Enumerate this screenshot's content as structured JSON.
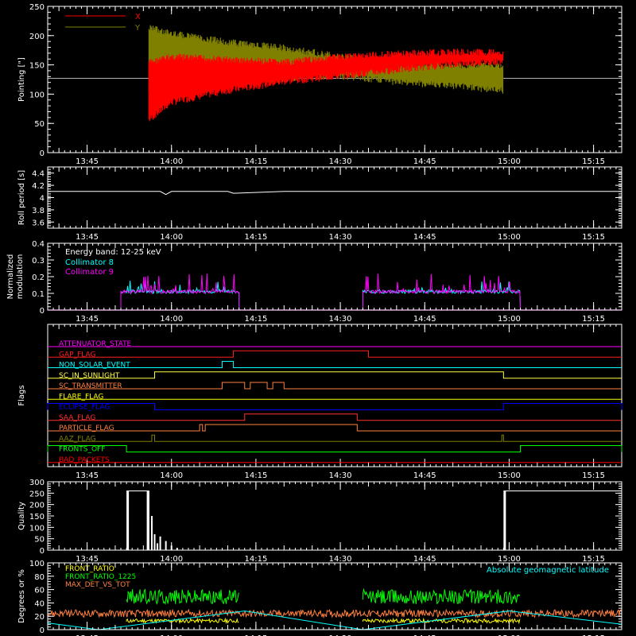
{
  "chart_data": [
    {
      "id": "pointing",
      "type": "line",
      "ylabel": "Pointing [\"]",
      "ylim": [
        0,
        250
      ],
      "yticks": [
        0,
        50,
        100,
        150,
        200,
        250
      ],
      "legend_placement": "top-left",
      "series": [
        {
          "name": "X",
          "color": "#ff0000",
          "x": [
            "13:56",
            "14:00",
            "14:10",
            "14:20",
            "14:30",
            "14:40",
            "14:50",
            "14:59"
          ],
          "upper": [
            160,
            170,
            165,
            160,
            170,
            175,
            178,
            178
          ],
          "lower": [
            50,
            80,
            100,
            115,
            125,
            135,
            145,
            150
          ]
        },
        {
          "name": "Y",
          "color": "#808000",
          "x": [
            "13:56",
            "14:00",
            "14:10",
            "14:20",
            "14:30",
            "14:40",
            "14:50",
            "14:59"
          ],
          "upper": [
            220,
            210,
            195,
            185,
            170,
            160,
            155,
            155
          ],
          "lower": [
            95,
            105,
            115,
            120,
            125,
            115,
            108,
            100
          ]
        }
      ],
      "reference_line": 127
    },
    {
      "id": "roll",
      "type": "line",
      "ylabel": "Roll period [s]",
      "ylim": [
        3.5,
        4.5
      ],
      "yticks": [
        3.6,
        3.8,
        4.0,
        4.2,
        4.4
      ],
      "series": [
        {
          "name": "",
          "color": "#ffffff",
          "x": [
            "13:38",
            "13:58",
            "13:59",
            "14:00",
            "14:10",
            "14:11",
            "14:20",
            "15:20"
          ],
          "values": [
            4.1,
            4.1,
            4.05,
            4.1,
            4.1,
            4.07,
            4.1,
            4.1
          ]
        }
      ]
    },
    {
      "id": "modulation",
      "type": "line",
      "ylabel": "Normalized modulation",
      "ylim": [
        0,
        0.4
      ],
      "yticks": [
        0,
        0.1,
        0.2,
        0.3,
        0.4
      ],
      "annotation": "Energy band: 12-25 keV",
      "series": [
        {
          "name": "Collimator 8",
          "color": "#00ffff",
          "active": [
            [
              "13:51",
              "14:12"
            ],
            [
              "14:34",
              "15:02"
            ]
          ],
          "level": 0.1,
          "peak": 0.18
        },
        {
          "name": "Collimator 9",
          "color": "#ff00ff",
          "active": [
            [
              "13:51",
              "14:12"
            ],
            [
              "14:34",
              "15:02"
            ]
          ],
          "level": 0.1,
          "peak": 0.22
        }
      ]
    },
    {
      "id": "flags",
      "type": "line",
      "ylabel": "Flags",
      "series": [
        {
          "name": "ATTENUATOR_STATE",
          "color": "#ff00ff",
          "segments": []
        },
        {
          "name": "GAP_FLAG",
          "color": "#ff2020",
          "segments": [
            [
              "14:11",
              "14:35"
            ]
          ]
        },
        {
          "name": "NON_SOLAR_EVENT",
          "color": "#00ffff",
          "segments": [
            [
              "14:09",
              "14:11"
            ]
          ]
        },
        {
          "name": "SC_IN_SUNLIGHT",
          "color": "#ffff40",
          "segments": [
            [
              "13:57",
              "14:59"
            ]
          ]
        },
        {
          "name": "SC_TRANSMITTER",
          "color": "#ff8040",
          "segments": [
            [
              "14:09",
              "14:13"
            ],
            [
              "14:14",
              "14:17"
            ],
            [
              "14:18",
              "14:20"
            ]
          ]
        },
        {
          "name": "FLARE_FLAG",
          "color": "#ffff00",
          "segments": []
        },
        {
          "name": "ECLIPSE_FLAG",
          "color": "#0000ff",
          "segments": [
            [
              "13:38",
              "13:57"
            ],
            [
              "14:59",
              "15:20"
            ]
          ]
        },
        {
          "name": "SAA_FLAG",
          "color": "#ff3030",
          "segments": [
            [
              "14:13",
              "14:33"
            ]
          ]
        },
        {
          "name": "PARTICLE_FLAG",
          "color": "#ff8040",
          "segments": [
            [
              "14:05",
              "14:05.5"
            ],
            [
              "14:06",
              "14:33"
            ]
          ]
        },
        {
          "name": "AAZ_FLAG",
          "color": "#808000",
          "segments": [
            [
              "13:56.5",
              "13:57"
            ],
            [
              "14:58.7",
              "14:59"
            ]
          ]
        },
        {
          "name": "FRONTS_OFF",
          "color": "#00ff00",
          "segments": [
            [
              "13:38",
              "13:52"
            ],
            [
              "15:02",
              "15:20"
            ]
          ]
        },
        {
          "name": "BAD_PACKETS",
          "color": "#ff0000",
          "segments": []
        }
      ]
    },
    {
      "id": "quality",
      "type": "bar",
      "ylabel": "Quality",
      "ylim": [
        0,
        300
      ],
      "yticks": [
        0,
        50,
        100,
        150,
        200,
        250,
        300
      ],
      "series": [
        {
          "name": "",
          "color": "#ffffff",
          "blocks": [
            [
              "13:52",
              "13:56",
              260
            ],
            [
              "14:59",
              "15:20",
              260
            ]
          ],
          "spikes": [
            [
              "13:56.5",
              150
            ],
            [
              "13:57",
              70
            ],
            [
              "13:57.5",
              30
            ],
            [
              "13:58",
              60
            ],
            [
              "13:59",
              40
            ],
            [
              "14:00",
              20
            ],
            [
              "14:01",
              10
            ]
          ]
        }
      ]
    },
    {
      "id": "geomag",
      "type": "line",
      "ylabel": "Degrees or %",
      "ylim": [
        0,
        100
      ],
      "yticks": [
        0,
        20,
        40,
        60,
        80,
        100
      ],
      "legend_placement": "top-left",
      "series": [
        {
          "name": "FRONT_RATIO",
          "color": "#ffff00",
          "active": [
            [
              "13:52",
              "14:12"
            ],
            [
              "14:34",
              "15:02"
            ]
          ],
          "level": 12
        },
        {
          "name": "FRONT_RATIO_1225",
          "color": "#00ff00",
          "active": [
            [
              "13:52",
              "14:12"
            ],
            [
              "14:34",
              "15:02"
            ]
          ],
          "level": 45
        },
        {
          "name": "MAX_DET_VS_TOT",
          "color": "#ff8040",
          "active": [
            [
              "13:38",
              "15:20"
            ]
          ],
          "level": 22
        },
        {
          "name": "Absolute geomagnetic latitude",
          "color": "#00ffff",
          "x": [
            "13:38",
            "13:47",
            "14:13",
            "14:34",
            "15:00",
            "15:20"
          ],
          "values": [
            10,
            0,
            28,
            0,
            28,
            8
          ]
        }
      ]
    }
  ],
  "xaxis": {
    "xlim": [
      "13:38",
      "15:20"
    ],
    "ticks": [
      "13:45",
      "14:00",
      "14:15",
      "14:30",
      "14:45",
      "15:00",
      "15:15"
    ]
  }
}
